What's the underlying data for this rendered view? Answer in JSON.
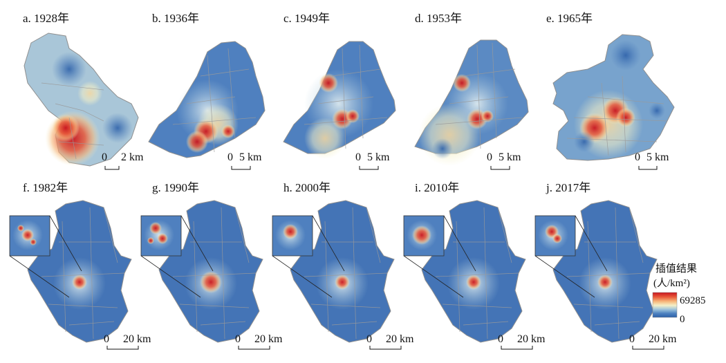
{
  "panels_top": [
    {
      "label": "a. 1928年",
      "scale": "0",
      "scale_end": "2 km"
    },
    {
      "label": "b. 1936年",
      "scale": "0",
      "scale_end": "5 km"
    },
    {
      "label": "c. 1949年",
      "scale": "0",
      "scale_end": "5 km"
    },
    {
      "label": "d. 1953年",
      "scale": "0",
      "scale_end": "5 km"
    },
    {
      "label": "e. 1965年",
      "scale": "0",
      "scale_end": "5 km"
    }
  ],
  "panels_bottom": [
    {
      "label": "f. 1982年",
      "scale": "0",
      "scale_end": "20 km"
    },
    {
      "label": "g. 1990年",
      "scale": "0",
      "scale_end": "20 km"
    },
    {
      "label": "h. 2000年",
      "scale": "0",
      "scale_end": "20 km"
    },
    {
      "label": "i. 2010年",
      "scale": "0",
      "scale_end": "20 km"
    },
    {
      "label": "j. 2017年",
      "scale": "0",
      "scale_end": "20 km"
    }
  ],
  "legend": {
    "title_line1": "插值结果",
    "title_line2": "(人/km²)",
    "max_label": "69285",
    "min_label": "0",
    "colors": [
      "#2b5fa8",
      "#4d82c0",
      "#9fc4dc",
      "#f4f0c8",
      "#f7b77a",
      "#e8593a",
      "#c7151f"
    ]
  },
  "colors": {
    "low": "#4475b4",
    "mid": "#f3efc3",
    "high": "#d7191c",
    "boundary": "#9a9a9a"
  }
}
